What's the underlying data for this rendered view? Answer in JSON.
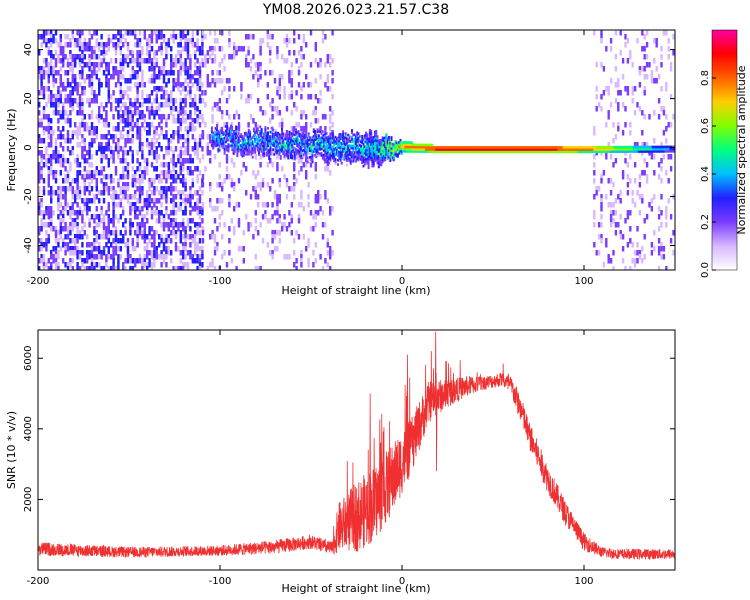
{
  "title": "YM08.2026.023.21.57.C38",
  "chart_data": [
    {
      "type": "heatmap",
      "name": "spectrogram",
      "title": "YM08.2026.023.21.57.C38",
      "xlabel": "Height of straight line (km)",
      "ylabel": "Frequency (Hz)",
      "xlim": [
        -200,
        150
      ],
      "ylim": [
        -50,
        48
      ],
      "x_ticks": [
        -200,
        -100,
        0,
        100
      ],
      "y_ticks": [
        -40,
        -20,
        0,
        20,
        40
      ],
      "colorbar": {
        "label": "Normalized spectral amplitude",
        "range": [
          0,
          1
        ],
        "ticks": [
          "0.0",
          "0.2",
          "0.4",
          "0.6",
          "0.8"
        ],
        "colors": [
          "#ffffff",
          "#d8b8ff",
          "#7a3cff",
          "#2020ff",
          "#00bfff",
          "#00ff80",
          "#80ff00",
          "#ffd000",
          "#ff6000",
          "#ff0000",
          "#ff00a0"
        ]
      },
      "noise_regions": [
        {
          "x": [
            -200,
            -110
          ],
          "y": [
            -50,
            48
          ],
          "density": 0.9
        },
        {
          "x": [
            -110,
            -38
          ],
          "y": [
            -50,
            48
          ],
          "density": 0.35
        },
        {
          "x": [
            105,
            150
          ],
          "y": [
            -50,
            48
          ],
          "density": 0.3
        }
      ],
      "signal_band": {
        "x": [
          -105,
          -15,
          0,
          20,
          60,
          100,
          150
        ],
        "center_hz": [
          4,
          0,
          1,
          0,
          0,
          0,
          0
        ],
        "halfwidth_hz": [
          4,
          6,
          2,
          1.2,
          1.2,
          1.2,
          1
        ],
        "amplitude": [
          0.4,
          0.45,
          0.7,
          0.9,
          0.95,
          0.8,
          0.3
        ]
      }
    },
    {
      "type": "line",
      "name": "snr",
      "xlabel": "Height of straight line (km)",
      "ylabel": "SNR (10 * v/v)",
      "xlim": [
        -200,
        150
      ],
      "ylim": [
        0,
        6800
      ],
      "x_ticks": [
        -200,
        -100,
        0,
        100
      ],
      "y_ticks": [
        2000,
        4000,
        6000
      ],
      "color": "#f03030",
      "envelope": {
        "x": [
          -200,
          -150,
          -100,
          -70,
          -50,
          -38,
          -35,
          -25,
          -15,
          -5,
          5,
          15,
          25,
          35,
          45,
          55,
          60,
          65,
          70,
          80,
          90,
          100,
          110,
          120,
          150
        ],
        "mean": [
          600,
          500,
          550,
          650,
          800,
          600,
          1200,
          1500,
          1900,
          2600,
          3500,
          4800,
          5000,
          5200,
          5300,
          5400,
          5200,
          4600,
          3800,
          2600,
          1600,
          800,
          500,
          450,
          450
        ],
        "noise": [
          200,
          150,
          150,
          200,
          200,
          200,
          700,
          1000,
          1100,
          1000,
          800,
          600,
          400,
          300,
          200,
          200,
          300,
          400,
          400,
          400,
          350,
          250,
          150,
          150,
          150
        ]
      },
      "peaks": [
        {
          "x": 18.5,
          "y": 6750
        },
        {
          "x": 3,
          "y": 6100
        },
        {
          "x": -17.5,
          "y": 5000
        },
        {
          "x": 19,
          "y": 2800
        }
      ]
    }
  ]
}
